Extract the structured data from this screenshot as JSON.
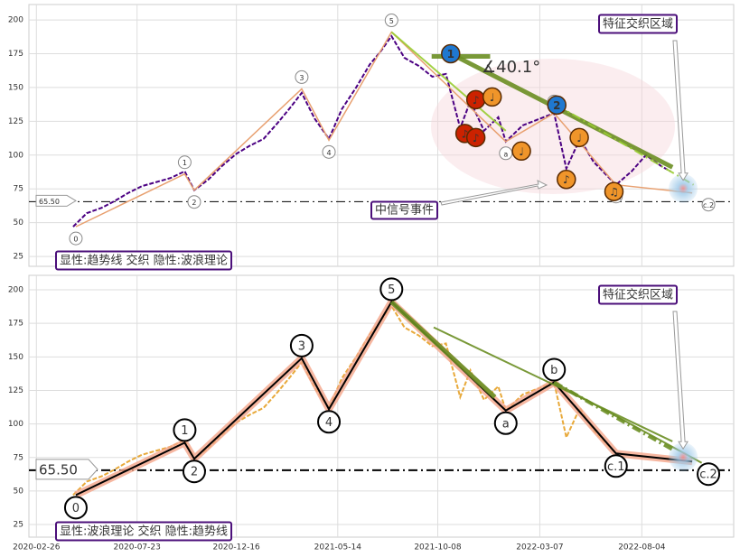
{
  "chart_data": [
    {
      "type": "line",
      "xlim": [
        "2020-02-15",
        "2022-12-17"
      ],
      "ylim": [
        17.7,
        211.4
      ],
      "yticks": [
        25,
        50,
        75,
        100,
        125,
        150,
        175,
        200
      ],
      "grid": true,
      "support": {
        "value": 65.5,
        "label": "65.50"
      },
      "zone_label": "特征交织区域",
      "event_label": "中信号事件",
      "mode_label": "显性:趋势线 交织 隐性:波浪理论",
      "angle_label": "∡40.1°",
      "series": [
        {
          "role": "price",
          "color": "#4b0082",
          "dash": "dashed",
          "x": [
            "2020-04-20",
            "2020-05-10",
            "2020-06-01",
            "2020-06-20",
            "2020-07-10",
            "2020-07-30",
            "2020-08-20",
            "2020-09-10",
            "2020-10-01",
            "2020-10-15",
            "2020-11-05",
            "2020-11-25",
            "2020-12-16",
            "2021-01-05",
            "2021-01-25",
            "2021-02-15",
            "2021-03-05",
            "2021-03-22",
            "2021-04-10",
            "2021-05-01",
            "2021-05-20",
            "2021-06-10",
            "2021-06-30",
            "2021-07-15",
            "2021-08-01",
            "2021-08-20",
            "2021-09-10",
            "2021-09-30",
            "2021-10-20",
            "2021-11-10",
            "2021-11-25",
            "2021-12-15",
            "2022-01-05",
            "2022-01-16",
            "2022-02-10",
            "2022-03-28",
            "2022-04-15",
            "2022-05-05",
            "2022-05-25",
            "2022-06-27",
            "2022-07-20",
            "2022-08-10",
            "2022-09-01",
            "2022-09-15"
          ],
          "values": [
            47,
            57,
            61,
            66,
            72,
            77,
            80,
            83,
            88,
            74,
            82,
            92,
            101,
            107,
            112,
            124,
            135,
            146,
            127,
            112,
            134,
            150,
            167,
            176,
            188,
            172,
            166,
            158,
            160,
            120,
            140,
            118,
            128,
            110,
            122,
            131,
            90,
            112,
            95,
            78,
            88,
            100,
            92,
            88
          ]
        },
        {
          "role": "wave",
          "color": "#e8a070",
          "dash": "solid",
          "x": [
            "2020-04-24",
            "2020-10-01",
            "2020-10-15",
            "2021-03-22",
            "2021-05-01",
            "2021-08-01",
            "2022-01-16",
            "2022-03-28",
            "2022-06-27",
            "2022-10-17"
          ],
          "values": [
            47,
            86,
            74,
            149,
            111,
            191,
            110,
            131,
            78,
            72
          ],
          "labels": [
            "0",
            "1",
            "2",
            "3",
            "4",
            "5",
            "a",
            "b",
            "c.1",
            "c.2"
          ]
        }
      ],
      "trendlines": [
        {
          "x": [
            "2021-09-29",
            "2021-12-24"
          ],
          "values": [
            173,
            173
          ],
          "color": "#6b8e23",
          "width": 5,
          "dash": "solid"
        },
        {
          "x": [
            "2021-10-27",
            "2022-09-18"
          ],
          "values": [
            175,
            91
          ],
          "color": "#6b8e23",
          "width": 5,
          "dash": "solid"
        },
        {
          "x": [
            "2021-08-01",
            "2022-01-16"
          ],
          "values": [
            191,
            118
          ],
          "color": "#9acd32",
          "width": 2,
          "dash": "solid"
        },
        {
          "x": [
            "2022-04-01",
            "2022-10-19"
          ],
          "values": [
            137,
            78
          ],
          "color": "#9acd32",
          "width": 2,
          "dash": "dashdot"
        }
      ],
      "signals": [
        {
          "x": "2021-10-27",
          "value": 175,
          "label": "1",
          "color": "#1f78d0"
        },
        {
          "x": "2021-12-03",
          "value": 141,
          "label": "♪",
          "color": "#cc2200"
        },
        {
          "x": "2021-11-17",
          "value": 116,
          "label": "♪",
          "color": "#cc2200"
        },
        {
          "x": "2021-12-03",
          "value": 113,
          "label": "♪",
          "color": "#cc2200"
        },
        {
          "x": "2021-12-27",
          "value": 143,
          "label": "♩",
          "color": "#f0952a"
        },
        {
          "x": "2022-02-08",
          "value": 103,
          "label": "♩",
          "color": "#f0952a"
        },
        {
          "x": "2022-04-01",
          "value": 137,
          "label": "2",
          "color": "#1f78d0"
        },
        {
          "x": "2022-05-04",
          "value": 113,
          "label": "♩",
          "color": "#f0952a"
        },
        {
          "x": "2022-04-15",
          "value": 82,
          "label": "♪",
          "color": "#f0952a"
        },
        {
          "x": "2022-06-24",
          "value": 73,
          "label": "♫",
          "color": "#f0952a"
        }
      ]
    },
    {
      "type": "line",
      "xlim": [
        "2020-02-15",
        "2022-12-17"
      ],
      "ylim": [
        15.6,
        210.8
      ],
      "yticks": [
        25,
        50,
        75,
        100,
        125,
        150,
        175,
        200
      ],
      "grid": true,
      "xticks": [
        "2020-02-26",
        "2020-07-23",
        "2020-12-16",
        "2021-05-14",
        "2021-10-08",
        "2022-03-07",
        "2022-08-04"
      ],
      "support": {
        "value": 65.5,
        "label": "65.50"
      },
      "zone_label": "特征交织区域",
      "mode_label": "显性:波浪理论 交织 隐性:趋势线",
      "series": [
        {
          "role": "price",
          "color": "#e8a93a",
          "dash": "dashed",
          "x": [
            "2020-04-20",
            "2020-05-10",
            "2020-06-01",
            "2020-06-20",
            "2020-07-10",
            "2020-07-30",
            "2020-08-20",
            "2020-09-10",
            "2020-10-01",
            "2020-10-15",
            "2020-11-05",
            "2020-11-25",
            "2020-12-16",
            "2021-01-05",
            "2021-01-25",
            "2021-02-15",
            "2021-03-05",
            "2021-03-22",
            "2021-04-10",
            "2021-05-01",
            "2021-05-20",
            "2021-06-10",
            "2021-06-30",
            "2021-07-15",
            "2021-08-01",
            "2021-08-20",
            "2021-09-10",
            "2021-09-30",
            "2021-10-20",
            "2021-11-10",
            "2021-11-25",
            "2021-12-15",
            "2022-01-05",
            "2022-01-16",
            "2022-02-10",
            "2022-03-28",
            "2022-04-15",
            "2022-05-05",
            "2022-05-25",
            "2022-06-27"
          ],
          "values": [
            47,
            57,
            61,
            66,
            72,
            77,
            80,
            83,
            88,
            74,
            82,
            92,
            101,
            107,
            112,
            124,
            135,
            146,
            127,
            112,
            134,
            150,
            167,
            176,
            188,
            172,
            166,
            158,
            160,
            120,
            140,
            118,
            128,
            110,
            122,
            131,
            90,
            112,
            95,
            78
          ]
        },
        {
          "role": "wave",
          "color": "#000000",
          "dash": "solid",
          "x": [
            "2020-04-24",
            "2020-10-01",
            "2020-10-15",
            "2021-03-22",
            "2021-05-01",
            "2021-08-01",
            "2022-01-16",
            "2022-03-28",
            "2022-06-27",
            "2022-10-17"
          ],
          "values": [
            47,
            86,
            74,
            149,
            111,
            191,
            110,
            131,
            78,
            72
          ],
          "labels": [
            "0",
            "1",
            "2",
            "3",
            "4",
            "5",
            "a",
            "b",
            "c.1",
            "c.2"
          ]
        }
      ],
      "trendlines": [
        {
          "x": [
            "2021-10-02",
            "2022-09-18"
          ],
          "values": [
            172,
            87
          ],
          "color": "#6b8e23",
          "width": 2,
          "dash": "solid"
        },
        {
          "x": [
            "2021-08-01",
            "2021-12-31"
          ],
          "values": [
            191,
            120
          ],
          "color": "#6b8e23",
          "width": 5,
          "dash": "solid"
        },
        {
          "x": [
            "2022-03-28",
            "2022-09-18"
          ],
          "values": [
            131,
            81
          ],
          "color": "#6b8e23",
          "width": 4,
          "dash": "dashdot"
        },
        {
          "x": [
            "2022-03-28",
            "2022-10-31"
          ],
          "values": [
            131,
            71
          ],
          "color": "#6b8e23",
          "width": 2,
          "dash": "solid"
        }
      ]
    }
  ]
}
